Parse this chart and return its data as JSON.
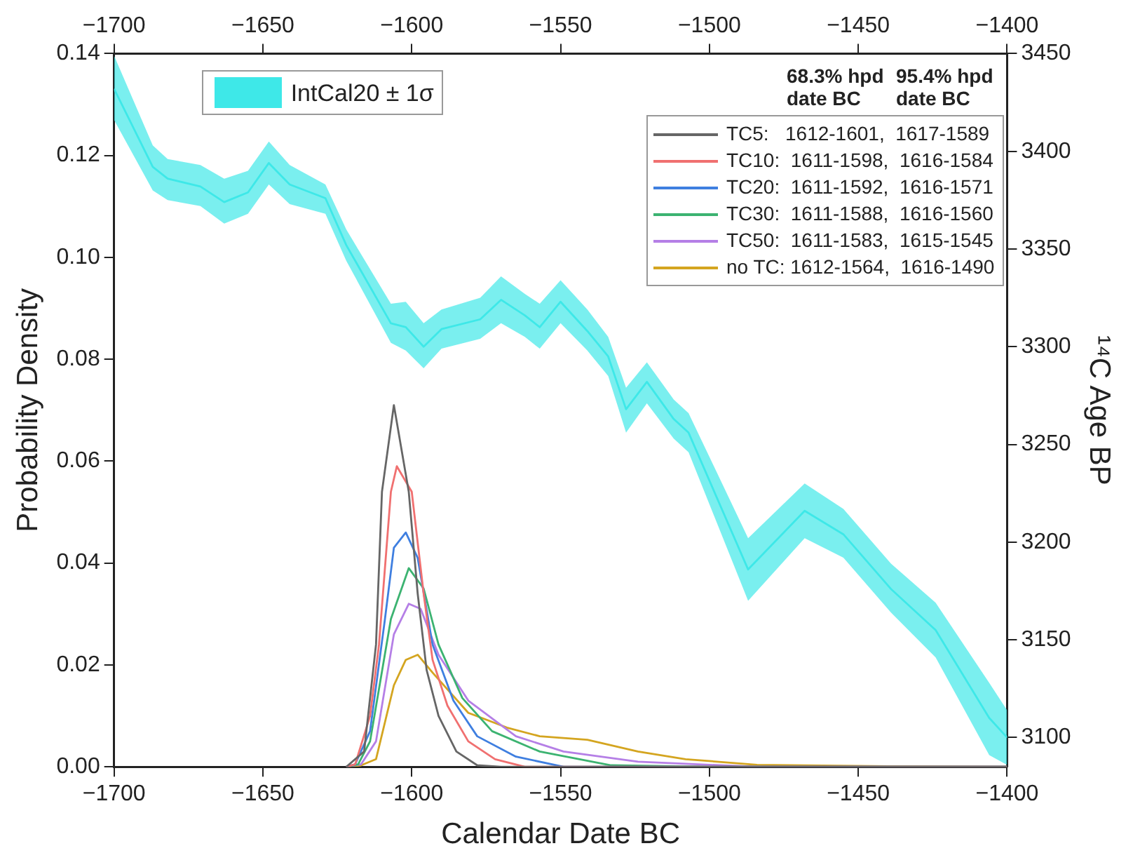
{
  "chart_data": {
    "type": "line",
    "xlabel": "Calendar Date BC",
    "ylabel": "Probability Density",
    "y2label": "¹⁴C Age BP",
    "xlim": [
      -1700,
      -1400
    ],
    "xticks": [
      -1700,
      -1650,
      -1600,
      -1550,
      -1500,
      -1450,
      -1400
    ],
    "x2lim": [
      -1700,
      -1400
    ],
    "x2ticks": [
      -1700,
      -1650,
      -1600,
      -1550,
      -1500,
      -1450,
      -1400
    ],
    "ylim": [
      0,
      0.14
    ],
    "yticks": [
      {
        "value": 0,
        "label": "0.00"
      },
      {
        "value": 0.02,
        "label": "0.02"
      },
      {
        "value": 0.04,
        "label": "0.04"
      },
      {
        "value": 0.06,
        "label": "0.06"
      },
      {
        "value": 0.08,
        "label": "0.08"
      },
      {
        "value": 0.1,
        "label": "0.10"
      },
      {
        "value": 0.12,
        "label": "0.12"
      },
      {
        "value": 0.14,
        "label": "0.14"
      }
    ],
    "y2lim": [
      3085,
      3450
    ],
    "y2ticks": [
      3100,
      3150,
      3200,
      3250,
      3300,
      3350,
      3400,
      3450
    ],
    "grid": false,
    "legend": "top right",
    "marker": "none",
    "line_style": "solid",
    "annotations": [
      "68.3% hpd date BC",
      "95.4% hpd date BC"
    ],
    "series": [
      {
        "name": "IntCal20 ± 1σ",
        "type": "line",
        "axis": "y2",
        "color": "#3ee8e8",
        "x": [
          -1700,
          -1687,
          -1682,
          -1671,
          -1663,
          -1655,
          -1648,
          -1641,
          -1629,
          -1622,
          -1607,
          -1602,
          -1596,
          -1590,
          -1577,
          -1570,
          -1562,
          -1557,
          -1550,
          -1541,
          -1534,
          -1528,
          -1521,
          -1512,
          -1507,
          -1487,
          -1468,
          -1455,
          -1439,
          -1424,
          -1406,
          -1400
        ],
        "values": [
          3432,
          3392,
          3386,
          3382,
          3374,
          3379,
          3394,
          3383,
          3376,
          3352,
          3312,
          3310,
          3300,
          3309,
          3314,
          3324,
          3316,
          3310,
          3323,
          3308,
          3295,
          3268,
          3282,
          3263,
          3256,
          3186,
          3216,
          3204,
          3176,
          3155,
          3110,
          3100
        ],
        "upper": [
          3449,
          3403,
          3396,
          3393,
          3386,
          3390,
          3405,
          3393,
          3383,
          3360,
          3322,
          3323,
          3312,
          3319,
          3325,
          3336,
          3327,
          3322,
          3334,
          3319,
          3305,
          3279,
          3292,
          3273,
          3266,
          3202,
          3230,
          3217,
          3189,
          3169,
          3128,
          3114
        ],
        "lower": [
          3416,
          3380,
          3375,
          3372,
          3363,
          3368,
          3383,
          3373,
          3368,
          3344,
          3302,
          3298,
          3289,
          3299,
          3304,
          3312,
          3305,
          3299,
          3312,
          3298,
          3285,
          3256,
          3271,
          3253,
          3246,
          3170,
          3202,
          3192,
          3164,
          3141,
          3091,
          3086
        ]
      },
      {
        "name": "TC5:   1612-1601,  1617-1589",
        "color": "#666666",
        "x": [
          -1622,
          -1616,
          -1612,
          -1610,
          -1606,
          -1601,
          -1598,
          -1595,
          -1591,
          -1585,
          -1578,
          -1570,
          -1400
        ],
        "values": [
          0,
          0.003,
          0.024,
          0.054,
          0.071,
          0.054,
          0.034,
          0.019,
          0.01,
          0.003,
          0.0003,
          0,
          0
        ]
      },
      {
        "name": "TC10:  1611-1598,  1616-1584",
        "color": "#f07070",
        "x": [
          -1622,
          -1619,
          -1614,
          -1611,
          -1607,
          -1605,
          -1600,
          -1596,
          -1593,
          -1588,
          -1581,
          -1572,
          -1562,
          -1400
        ],
        "values": [
          0,
          0.0005,
          0.01,
          0.024,
          0.054,
          0.059,
          0.054,
          0.034,
          0.021,
          0.012,
          0.005,
          0.0015,
          0,
          0
        ]
      },
      {
        "name": "TC20:  1611-1592,  1616-1571",
        "color": "#3f7fe0",
        "x": [
          -1622,
          -1619,
          -1614,
          -1609,
          -1606,
          -1602,
          -1598,
          -1593,
          -1586,
          -1578,
          -1565,
          -1549,
          -1400
        ],
        "values": [
          0,
          0.0005,
          0.007,
          0.029,
          0.043,
          0.046,
          0.041,
          0.024,
          0.013,
          0.006,
          0.002,
          0,
          0
        ]
      },
      {
        "name": "TC30:  1611-1588,  1616-1560",
        "color": "#3cb371",
        "x": [
          -1622,
          -1618,
          -1614,
          -1607,
          -1601,
          -1596,
          -1591,
          -1583,
          -1573,
          -1557,
          -1533,
          -1500,
          -1400
        ],
        "values": [
          0,
          0.0005,
          0.005,
          0.029,
          0.039,
          0.035,
          0.024,
          0.0135,
          0.007,
          0.003,
          0.0003,
          0,
          0
        ]
      },
      {
        "name": "TC50:  1611-1583,  1615-1545",
        "color": "#b57fe6",
        "x": [
          -1622,
          -1617,
          -1612,
          -1606,
          -1601,
          -1597,
          -1591,
          -1581,
          -1565,
          -1549,
          -1524,
          -1484,
          -1400
        ],
        "values": [
          0,
          0.0005,
          0.005,
          0.026,
          0.032,
          0.031,
          0.022,
          0.013,
          0.006,
          0.003,
          0.001,
          0,
          0
        ]
      },
      {
        "name": "no TC: 1612-1564,  1616-1490",
        "color": "#d4a520",
        "x": [
          -1622,
          -1617,
          -1612,
          -1606,
          -1602,
          -1598,
          -1593,
          -1581,
          -1568,
          -1557,
          -1541,
          -1524,
          -1508,
          -1484,
          -1440,
          -1400
        ],
        "values": [
          0,
          0.0003,
          0.0015,
          0.016,
          0.021,
          0.022,
          0.0185,
          0.0106,
          0.0077,
          0.006,
          0.0053,
          0.003,
          0.0015,
          0.0004,
          0.0001,
          0
        ]
      }
    ]
  }
}
